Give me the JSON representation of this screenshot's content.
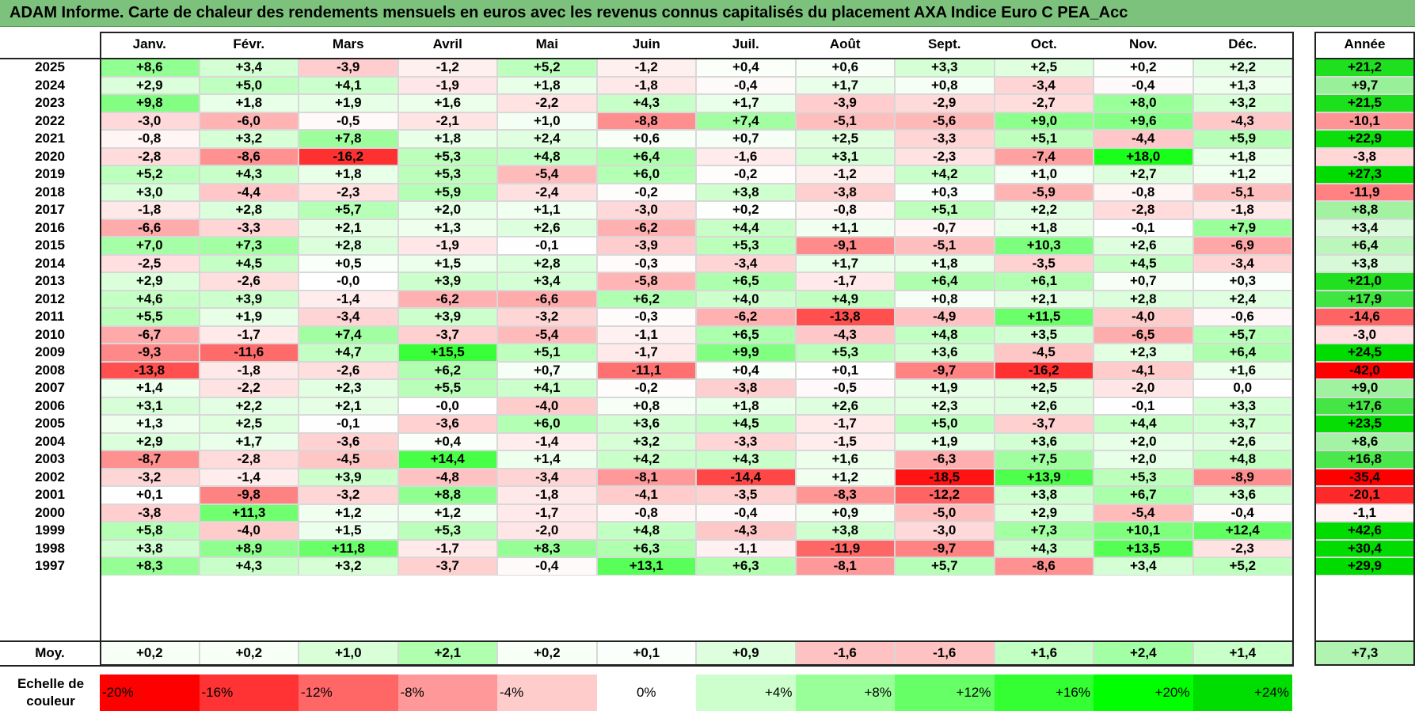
{
  "title": "ADAM Informe. Carte de chaleur des rendements mensuels en euros avec les revenus connus capitalisés du placement AXA Indice Euro C PEA_Acc",
  "chart_data": {
    "type": "heatmap",
    "title": "ADAM Informe. Carte de chaleur des rendements mensuels en euros avec les revenus connus capitalisés du placement AXA Indice Euro C PEA_Acc",
    "columns": [
      "Janv.",
      "Févr.",
      "Mars",
      "Avril",
      "Mai",
      "Juin",
      "Juil.",
      "Août",
      "Sept.",
      "Oct.",
      "Nov.",
      "Déc."
    ],
    "year_column_label": "Année",
    "rows": [
      {
        "year": "2025",
        "values": [
          "+8,6",
          "+3,4",
          "-3,9",
          "-1,2",
          "+5,2",
          "-1,2",
          "+0,4",
          "+0,6",
          "+3,3",
          "+2,5",
          "+0,2",
          "+2,2"
        ],
        "annual": "+21,2"
      },
      {
        "year": "2024",
        "values": [
          "+2,9",
          "+5,0",
          "+4,1",
          "-1,9",
          "+1,8",
          "-1,8",
          "-0,4",
          "+1,7",
          "+0,8",
          "-3,4",
          "-0,4",
          "+1,3"
        ],
        "annual": "+9,7"
      },
      {
        "year": "2023",
        "values": [
          "+9,8",
          "+1,8",
          "+1,9",
          "+1,6",
          "-2,2",
          "+4,3",
          "+1,7",
          "-3,9",
          "-2,9",
          "-2,7",
          "+8,0",
          "+3,2"
        ],
        "annual": "+21,5"
      },
      {
        "year": "2022",
        "values": [
          "-3,0",
          "-6,0",
          "-0,5",
          "-2,1",
          "+1,0",
          "-8,8",
          "+7,4",
          "-5,1",
          "-5,6",
          "+9,0",
          "+9,6",
          "-4,3"
        ],
        "annual": "-10,1"
      },
      {
        "year": "2021",
        "values": [
          "-0,8",
          "+3,2",
          "+7,8",
          "+1,8",
          "+2,4",
          "+0,6",
          "+0,7",
          "+2,5",
          "-3,3",
          "+5,1",
          "-4,4",
          "+5,9"
        ],
        "annual": "+22,9"
      },
      {
        "year": "2020",
        "values": [
          "-2,8",
          "-8,6",
          "-16,2",
          "+5,3",
          "+4,8",
          "+6,4",
          "-1,6",
          "+3,1",
          "-2,3",
          "-7,4",
          "+18,0",
          "+1,8"
        ],
        "annual": "-3,8"
      },
      {
        "year": "2019",
        "values": [
          "+5,2",
          "+4,3",
          "+1,8",
          "+5,3",
          "-5,4",
          "+6,0",
          "-0,2",
          "-1,2",
          "+4,2",
          "+1,0",
          "+2,7",
          "+1,2"
        ],
        "annual": "+27,3"
      },
      {
        "year": "2018",
        "values": [
          "+3,0",
          "-4,4",
          "-2,3",
          "+5,9",
          "-2,4",
          "-0,2",
          "+3,8",
          "-3,8",
          "+0,3",
          "-5,9",
          "-0,8",
          "-5,1"
        ],
        "annual": "-11,9"
      },
      {
        "year": "2017",
        "values": [
          "-1,8",
          "+2,8",
          "+5,7",
          "+2,0",
          "+1,1",
          "-3,0",
          "+0,2",
          "-0,8",
          "+5,1",
          "+2,2",
          "-2,8",
          "-1,8"
        ],
        "annual": "+8,8"
      },
      {
        "year": "2016",
        "values": [
          "-6,6",
          "-3,3",
          "+2,1",
          "+1,3",
          "+2,6",
          "-6,2",
          "+4,4",
          "+1,1",
          "-0,7",
          "+1,8",
          "-0,1",
          "+7,9"
        ],
        "annual": "+3,4"
      },
      {
        "year": "2015",
        "values": [
          "+7,0",
          "+7,3",
          "+2,8",
          "-1,9",
          "-0,1",
          "-3,9",
          "+5,3",
          "-9,1",
          "-5,1",
          "+10,3",
          "+2,6",
          "-6,9"
        ],
        "annual": "+6,4"
      },
      {
        "year": "2014",
        "values": [
          "-2,5",
          "+4,5",
          "+0,5",
          "+1,5",
          "+2,8",
          "-0,3",
          "-3,4",
          "+1,7",
          "+1,8",
          "-3,5",
          "+4,5",
          "-3,4"
        ],
        "annual": "+3,8"
      },
      {
        "year": "2013",
        "values": [
          "+2,9",
          "-2,6",
          "-0,0",
          "+3,9",
          "+3,4",
          "-5,8",
          "+6,5",
          "-1,7",
          "+6,4",
          "+6,1",
          "+0,7",
          "+0,3"
        ],
        "annual": "+21,0"
      },
      {
        "year": "2012",
        "values": [
          "+4,6",
          "+3,9",
          "-1,4",
          "-6,2",
          "-6,6",
          "+6,2",
          "+4,0",
          "+4,9",
          "+0,8",
          "+2,1",
          "+2,8",
          "+2,4"
        ],
        "annual": "+17,9"
      },
      {
        "year": "2011",
        "values": [
          "+5,5",
          "+1,9",
          "-3,4",
          "+3,9",
          "-3,2",
          "-0,3",
          "-6,2",
          "-13,8",
          "-4,9",
          "+11,5",
          "-4,0",
          "-0,6"
        ],
        "annual": "-14,6"
      },
      {
        "year": "2010",
        "values": [
          "-6,7",
          "-1,7",
          "+7,4",
          "-3,7",
          "-5,4",
          "-1,1",
          "+6,5",
          "-4,3",
          "+4,8",
          "+3,5",
          "-6,5",
          "+5,7"
        ],
        "annual": "-3,0"
      },
      {
        "year": "2009",
        "values": [
          "-9,3",
          "-11,6",
          "+4,7",
          "+15,5",
          "+5,1",
          "-1,7",
          "+9,9",
          "+5,3",
          "+3,6",
          "-4,5",
          "+2,3",
          "+6,4"
        ],
        "annual": "+24,5"
      },
      {
        "year": "2008",
        "values": [
          "-13,8",
          "-1,8",
          "-2,6",
          "+6,2",
          "+0,7",
          "-11,1",
          "+0,4",
          "+0,1",
          "-9,7",
          "-16,2",
          "-4,1",
          "+1,6"
        ],
        "annual": "-42,0"
      },
      {
        "year": "2007",
        "values": [
          "+1,4",
          "-2,2",
          "+2,3",
          "+5,5",
          "+4,1",
          "-0,2",
          "-3,8",
          "-0,5",
          "+1,9",
          "+2,5",
          "-2,0",
          "0,0"
        ],
        "annual": "+9,0"
      },
      {
        "year": "2006",
        "values": [
          "+3,1",
          "+2,2",
          "+2,1",
          "-0,0",
          "-4,0",
          "+0,8",
          "+1,8",
          "+2,6",
          "+2,3",
          "+2,6",
          "-0,1",
          "+3,3"
        ],
        "annual": "+17,6"
      },
      {
        "year": "2005",
        "values": [
          "+1,3",
          "+2,5",
          "-0,1",
          "-3,6",
          "+6,0",
          "+3,6",
          "+4,5",
          "-1,7",
          "+5,0",
          "-3,7",
          "+4,4",
          "+3,7"
        ],
        "annual": "+23,5"
      },
      {
        "year": "2004",
        "values": [
          "+2,9",
          "+1,7",
          "-3,6",
          "+0,4",
          "-1,4",
          "+3,2",
          "-3,3",
          "-1,5",
          "+1,9",
          "+3,6",
          "+2,0",
          "+2,6"
        ],
        "annual": "+8,6"
      },
      {
        "year": "2003",
        "values": [
          "-8,7",
          "-2,8",
          "-4,5",
          "+14,4",
          "+1,4",
          "+4,2",
          "+4,3",
          "+1,6",
          "-6,3",
          "+7,5",
          "+2,0",
          "+4,8"
        ],
        "annual": "+16,8"
      },
      {
        "year": "2002",
        "values": [
          "-3,2",
          "-1,4",
          "+3,9",
          "-4,8",
          "-3,4",
          "-8,1",
          "-14,4",
          "+1,2",
          "-18,5",
          "+13,9",
          "+5,3",
          "-8,9"
        ],
        "annual": "-35,4"
      },
      {
        "year": "2001",
        "values": [
          "+0,1",
          "-9,8",
          "-3,2",
          "+8,8",
          "-1,8",
          "-4,1",
          "-3,5",
          "-8,3",
          "-12,2",
          "+3,8",
          "+6,7",
          "+3,6"
        ],
        "annual": "-20,1"
      },
      {
        "year": "2000",
        "values": [
          "-3,8",
          "+11,3",
          "+1,2",
          "+1,2",
          "-1,7",
          "-0,8",
          "-0,4",
          "+0,9",
          "-5,0",
          "+2,9",
          "-5,4",
          "-0,4"
        ],
        "annual": "-1,1"
      },
      {
        "year": "1999",
        "values": [
          "+5,8",
          "-4,0",
          "+1,5",
          "+5,3",
          "-2,0",
          "+4,8",
          "-4,3",
          "+3,8",
          "-3,0",
          "+7,3",
          "+10,1",
          "+12,4"
        ],
        "annual": "+42,6"
      },
      {
        "year": "1998",
        "values": [
          "+3,8",
          "+8,9",
          "+11,8",
          "-1,7",
          "+8,3",
          "+6,3",
          "-1,1",
          "-11,9",
          "-9,7",
          "+4,3",
          "+13,5",
          "-2,3"
        ],
        "annual": "+30,4"
      },
      {
        "year": "1997",
        "values": [
          "+8,3",
          "+4,3",
          "+3,2",
          "-3,7",
          "-0,4",
          "+13,1",
          "+6,3",
          "-8,1",
          "+5,7",
          "-8,6",
          "+3,4",
          "+5,2"
        ],
        "annual": "+29,9"
      }
    ],
    "average": {
      "label": "Moy.",
      "values": [
        "+0,2",
        "+0,2",
        "+1,0",
        "+2,1",
        "+0,2",
        "+0,1",
        "+0,9",
        "-1,6",
        "-1,6",
        "+1,6",
        "+2,4",
        "+1,4"
      ],
      "annual": "+7,3"
    },
    "color_scale": {
      "label": "Echelle de couleur",
      "steps": [
        {
          "label": "-20%",
          "color": "#ff0000"
        },
        {
          "label": "-16%",
          "color": "#ff3333"
        },
        {
          "label": "-12%",
          "color": "#ff6666"
        },
        {
          "label": "-8%",
          "color": "#ff9999"
        },
        {
          "label": "-4%",
          "color": "#ffcccc"
        },
        {
          "label": "0%",
          "color": "#ffffff"
        },
        {
          "label": "+4%",
          "color": "#ccffcc"
        },
        {
          "label": "+8%",
          "color": "#99ff99"
        },
        {
          "label": "+12%",
          "color": "#66ff66"
        },
        {
          "label": "+16%",
          "color": "#33ff33"
        },
        {
          "label": "+20%",
          "color": "#00ff00"
        },
        {
          "label": "+24%",
          "color": "#00dd00"
        }
      ]
    }
  }
}
